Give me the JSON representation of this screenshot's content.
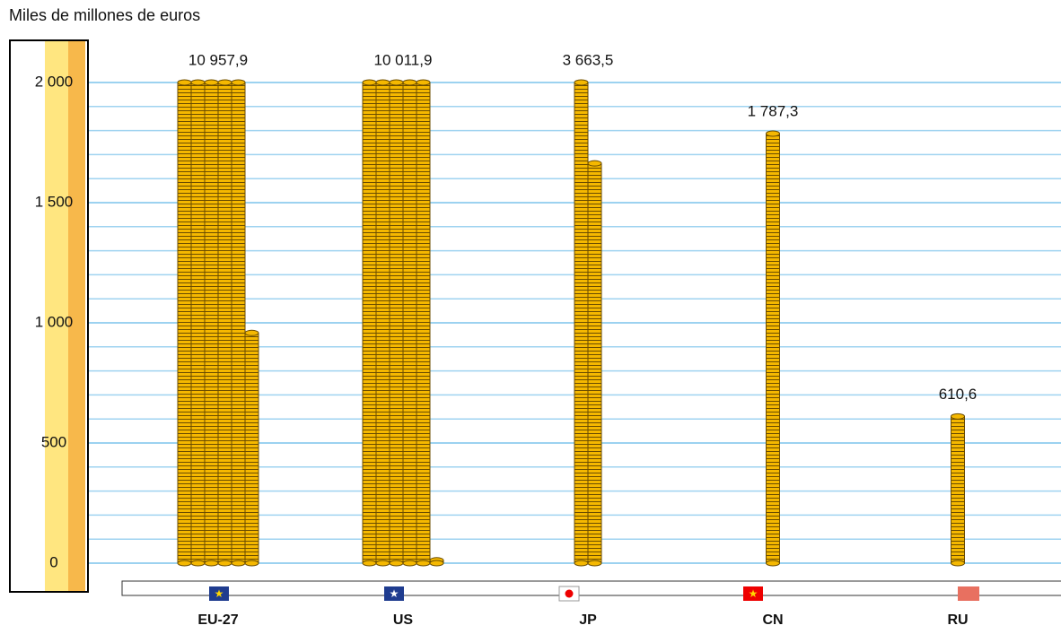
{
  "chart_data": {
    "type": "coin-stack",
    "ylabel": "Miles de millones de euros",
    "categories": [
      "EU-27",
      "US",
      "JP",
      "CN",
      "RU"
    ],
    "values": [
      10957.9,
      10011.9,
      3663.5,
      1787.3,
      610.6
    ],
    "value_labels": [
      "10 957,9",
      "10 011,9",
      "3 663,5",
      "1 787,3",
      "610,6"
    ],
    "color": "#f5b800",
    "ylim": [
      0,
      2000
    ],
    "yticks": [
      {
        "value": 0,
        "label": "0"
      },
      {
        "value": 500,
        "label": "500"
      },
      {
        "value": 1000,
        "label": "1 000"
      },
      {
        "value": 1500,
        "label": "1 500"
      },
      {
        "value": 2000,
        "label": "2 000"
      }
    ],
    "grid": true
  }
}
